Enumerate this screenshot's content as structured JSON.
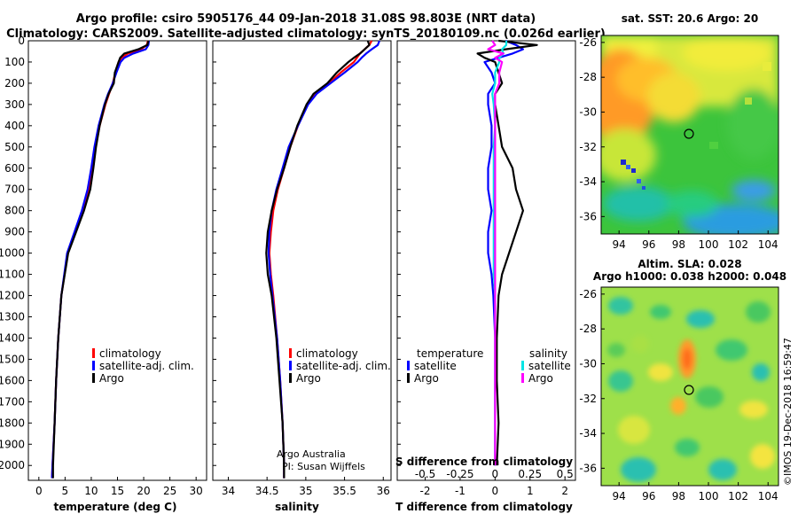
{
  "titles": {
    "line1": "Argo profile: csiro 5905176_44 09-Jan-2018 31.08S 98.803E (NRT data)",
    "line2": "Climatology: CARS2009. Satellite-adjusted climatology: synTS_20180109.nc (0.026d earlier)"
  },
  "colors": {
    "climatology": "#ff0000",
    "satellite": "#0000ff",
    "argo": "#000000",
    "sat_salinity": "#00e5e5",
    "clim_salinity": "#ff00ff"
  },
  "depth_ticks": [
    "0",
    "100",
    "200",
    "300",
    "400",
    "500",
    "600",
    "700",
    "800",
    "900",
    "1000",
    "1100",
    "1200",
    "1300",
    "1400",
    "1500",
    "1600",
    "1700",
    "1800",
    "1900",
    "2000"
  ],
  "credit": {
    "line1": "Argo Australia",
    "line2": "PI: Susan Wijffels"
  },
  "stamp": "©IMOS 19-Dec-2018 16:59:47",
  "chart_data": [
    {
      "type": "line",
      "id": "temperature",
      "xlabel": "temperature (deg C)",
      "ylabel": "depth",
      "xlim": [
        -2,
        32
      ],
      "ylim": [
        0,
        2070
      ],
      "xticks": [
        "0",
        "5",
        "10",
        "15",
        "20",
        "25",
        "30"
      ],
      "xtick_values": [
        0,
        5,
        10,
        15,
        20,
        25,
        30
      ],
      "legend": [
        "climatology",
        "satellite-adj. clim.",
        "Argo"
      ],
      "depth": [
        0,
        20,
        40,
        60,
        80,
        100,
        150,
        200,
        250,
        300,
        400,
        500,
        600,
        700,
        800,
        900,
        1000,
        1200,
        1400,
        1600,
        1800,
        2000,
        2060
      ],
      "series": [
        {
          "name": "climatology",
          "values": [
            20.8,
            20.6,
            19.5,
            17.0,
            15.8,
            15.2,
            14.6,
            14.1,
            13.4,
            12.7,
            11.6,
            10.8,
            10.2,
            9.5,
            8.3,
            6.9,
            5.5,
            4.3,
            3.7,
            3.3,
            3.0,
            2.6,
            2.5
          ]
        },
        {
          "name": "satellite-adj. clim.",
          "values": [
            21.0,
            20.9,
            20.4,
            18.0,
            16.3,
            15.6,
            14.8,
            14.1,
            13.2,
            12.5,
            11.4,
            10.6,
            10.0,
            9.3,
            8.2,
            6.8,
            5.4,
            4.3,
            3.7,
            3.3,
            3.0,
            2.6,
            2.5
          ]
        },
        {
          "name": "Argo",
          "values": [
            20.9,
            20.7,
            19.0,
            16.3,
            15.5,
            15.2,
            14.5,
            14.3,
            13.3,
            12.6,
            11.6,
            10.9,
            10.4,
            9.8,
            8.6,
            7.1,
            5.6,
            4.3,
            3.7,
            3.3,
            3.0,
            2.7,
            2.7
          ]
        }
      ]
    },
    {
      "type": "line",
      "id": "salinity",
      "xlabel": "salinity",
      "ylabel": "depth",
      "xlim": [
        33.8,
        36.1
      ],
      "ylim": [
        0,
        2070
      ],
      "xticks": [
        "34",
        "34.5",
        "35",
        "35.5",
        "36"
      ],
      "xtick_values": [
        34,
        34.5,
        35,
        35.5,
        36
      ],
      "legend": [
        "climatology",
        "satellite-adj. clim.",
        "Argo"
      ],
      "depth": [
        0,
        20,
        40,
        60,
        80,
        100,
        150,
        200,
        250,
        300,
        400,
        500,
        600,
        700,
        800,
        900,
        1000,
        1100,
        1200,
        1400,
        1600,
        1800,
        2000,
        2060
      ],
      "series": [
        {
          "name": "climatology",
          "values": [
            35.85,
            35.82,
            35.76,
            35.7,
            35.66,
            35.62,
            35.45,
            35.3,
            35.12,
            35.02,
            34.9,
            34.8,
            34.72,
            34.64,
            34.58,
            34.55,
            34.53,
            34.55,
            34.58,
            34.63,
            34.67,
            34.7,
            34.72,
            34.72
          ]
        },
        {
          "name": "satellite-adj. clim.",
          "values": [
            35.95,
            35.93,
            35.85,
            35.78,
            35.72,
            35.67,
            35.5,
            35.32,
            35.14,
            35.03,
            34.9,
            34.78,
            34.7,
            34.62,
            34.56,
            34.53,
            34.52,
            34.54,
            34.57,
            34.63,
            34.67,
            34.7,
            34.72,
            34.72
          ]
        },
        {
          "name": "Argo",
          "values": [
            35.8,
            35.82,
            35.76,
            35.7,
            35.62,
            35.55,
            35.4,
            35.28,
            35.1,
            35.01,
            34.89,
            34.8,
            34.72,
            34.63,
            34.56,
            34.51,
            34.49,
            34.51,
            34.56,
            34.62,
            34.66,
            34.7,
            34.72,
            34.72
          ]
        }
      ]
    },
    {
      "type": "line",
      "id": "difference",
      "xlabel": "T difference from climatology",
      "x2label": "S difference from climatology",
      "xlim": [
        -2.8,
        2.3
      ],
      "ylim": [
        0,
        2070
      ],
      "xticks": [
        "-2",
        "-1",
        "0",
        "1",
        "2"
      ],
      "xtick_values": [
        -2,
        -1,
        0,
        1,
        2
      ],
      "x2ticks": [
        "-0.5",
        "-0.25",
        "0",
        "0.25",
        "0.5"
      ],
      "x2tick_values": [
        -0.5,
        -0.25,
        0,
        0.25,
        0.5
      ],
      "legend": {
        "temperature_title": "temperature",
        "salinity_title": "salinity",
        "entries": [
          "satellite",
          "Argo",
          "satellite",
          "Argo"
        ]
      },
      "depth": [
        0,
        20,
        40,
        60,
        80,
        100,
        150,
        200,
        250,
        300,
        400,
        500,
        600,
        700,
        800,
        900,
        1000,
        1100,
        1200,
        1400,
        1600,
        1800,
        2000
      ],
      "series": [
        {
          "name": "temperature satellite",
          "values": [
            0.3,
            0.6,
            0.8,
            0.5,
            0.1,
            -0.3,
            -0.1,
            0.0,
            -0.2,
            -0.2,
            -0.1,
            -0.1,
            -0.2,
            -0.2,
            -0.1,
            -0.2,
            -0.2,
            -0.1,
            -0.05,
            0.0,
            0.0,
            0.0,
            0.0
          ]
        },
        {
          "name": "temperature Argo",
          "values": [
            0.1,
            1.2,
            0.3,
            -0.5,
            -0.3,
            0.0,
            0.1,
            0.2,
            0.0,
            0.0,
            0.1,
            0.2,
            0.5,
            0.6,
            0.8,
            0.6,
            0.4,
            0.2,
            0.1,
            0.05,
            0.05,
            0.1,
            0.05
          ]
        },
        {
          "name": "salinity satellite",
          "values": [
            0.08,
            0.08,
            0.05,
            0.06,
            0.03,
            0.03,
            0.0,
            0.0,
            -0.02,
            -0.01,
            0.0,
            -0.01,
            -0.01,
            -0.01,
            -0.01,
            -0.01,
            -0.01,
            -0.01,
            0.0,
            0.0,
            0.0,
            0.0,
            0.0
          ]
        },
        {
          "name": "salinity Argo",
          "values": [
            -0.02,
            0.0,
            -0.05,
            0.06,
            0.0,
            0.05,
            0.03,
            0.03,
            0.0,
            0.0,
            0.0,
            0.0,
            0.0,
            0.0,
            0.0,
            0.0,
            0.0,
            0.0,
            0.0,
            0.0,
            0.0,
            0.0,
            0.0
          ]
        }
      ]
    },
    {
      "type": "heatmap",
      "id": "sst_map",
      "title": "sat. SST: 20.6 Argo: 20",
      "xticks": [
        "94",
        "96",
        "98",
        "100",
        "102",
        "104"
      ],
      "yticks": [
        "-26",
        "-28",
        "-30",
        "-32",
        "-34",
        "-36"
      ],
      "lon_range": [
        92.8,
        104.7
      ],
      "lat_range": [
        -25.6,
        -37.0
      ],
      "argo_position": {
        "lon": 98.8,
        "lat": -31.08
      }
    },
    {
      "type": "heatmap",
      "id": "sla_map",
      "title": "Altim. SLA: 0.028",
      "subtitle": "Argo h1000: 0.038 h2000: 0.048",
      "xticks": [
        "94",
        "96",
        "98",
        "100",
        "102",
        "104"
      ],
      "yticks": [
        "-26",
        "-28",
        "-30",
        "-32",
        "-34",
        "-36"
      ],
      "lon_range": [
        92.8,
        104.7
      ],
      "lat_range": [
        -25.6,
        -37.0
      ],
      "argo_position": {
        "lon": 98.8,
        "lat": -31.08
      }
    }
  ]
}
